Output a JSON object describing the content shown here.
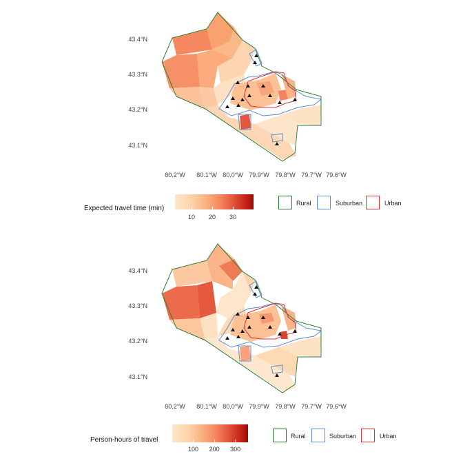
{
  "maps": [
    {
      "legend_title": "Expected travel time (min)",
      "scale_ticks": [
        "10",
        "20",
        "30"
      ],
      "tick_values": [
        10,
        20,
        30
      ],
      "scale_range": [
        2,
        40
      ]
    },
    {
      "legend_title": "Person-hours of travel",
      "scale_ticks": [
        "100",
        "200",
        "300"
      ],
      "tick_values": [
        100,
        200,
        300
      ],
      "scale_range": [
        0,
        360
      ]
    }
  ],
  "lat_labels": [
    "43.4°N",
    "43.3°N",
    "43.2°N",
    "43.1°N"
  ],
  "lon_labels": [
    "80.2°W",
    "80.1°W",
    "80.0°W",
    "79.9°W",
    "79.8°W",
    "79.7°W",
    "79.6°W"
  ],
  "region_legend": [
    {
      "label": "Rural",
      "color": "#2e7d32"
    },
    {
      "label": "Suburban",
      "color": "#5b8bd6"
    },
    {
      "label": "Urban",
      "color": "#e03030"
    }
  ],
  "colors": {
    "rural": "#2e7d32",
    "suburban": "#5b8bd6",
    "urban": "#e03030",
    "scale_low": "#fde7cc",
    "scale_high": "#9a0a08"
  }
}
